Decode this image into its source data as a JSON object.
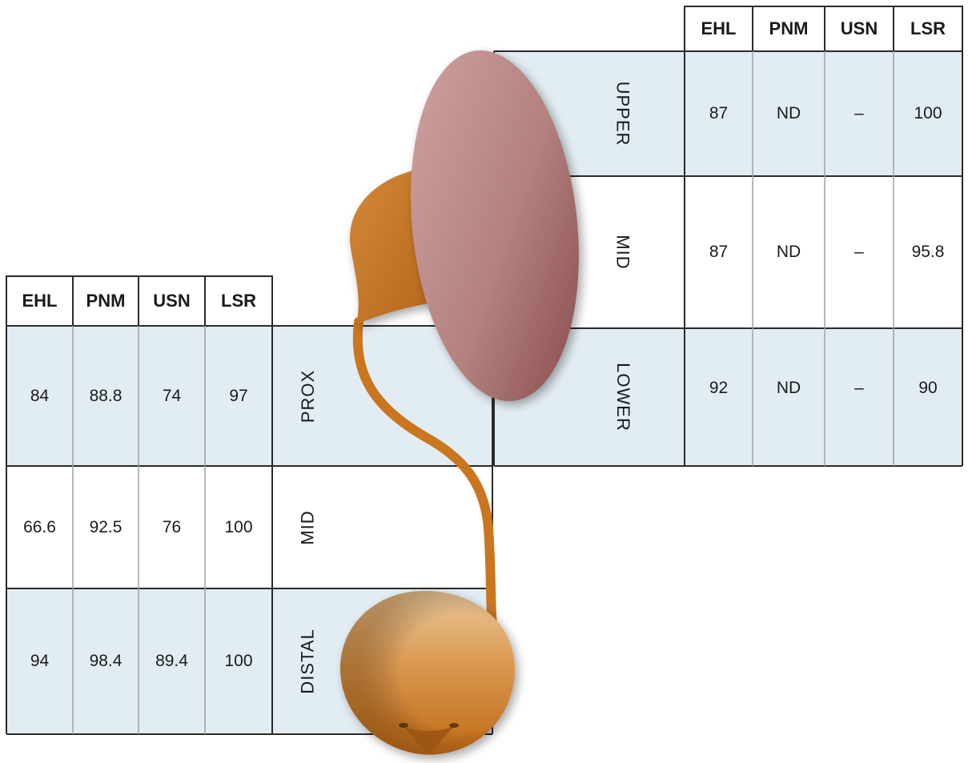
{
  "colors": {
    "shade": "#e2edf3",
    "white": "#ffffff",
    "line": "#2a2a2a",
    "gridline": "#9aa4aa",
    "kidney_light": "#c69b98",
    "kidney_dark": "#8a4a4a",
    "ureter": "#c9761f",
    "bladder_light": "#e6c190",
    "bladder_dark": "#c46f1a"
  },
  "upper_table": {
    "headers": [
      "EHL",
      "PNM",
      "USN",
      "LSR"
    ],
    "rows": [
      {
        "label": "UPPER",
        "values": [
          "87",
          "ND",
          "–",
          "100"
        ],
        "shaded": true
      },
      {
        "label": "MID",
        "values": [
          "87",
          "ND",
          "–",
          "95.8"
        ],
        "shaded": false
      },
      {
        "label": "LOWER",
        "values": [
          "92",
          "ND",
          "–",
          "90"
        ],
        "shaded": true
      }
    ]
  },
  "lower_table": {
    "headers": [
      "EHL",
      "PNM",
      "USN",
      "LSR"
    ],
    "rows": [
      {
        "label": "PROX",
        "values": [
          "84",
          "88.8",
          "74",
          "97"
        ],
        "shaded": true
      },
      {
        "label": "MID",
        "values": [
          "66.6",
          "92.5",
          "76",
          "100"
        ],
        "shaded": false
      },
      {
        "label": "DISTAL",
        "values": [
          "94",
          "98.4",
          "89.4",
          "100"
        ],
        "shaded": true
      }
    ]
  }
}
